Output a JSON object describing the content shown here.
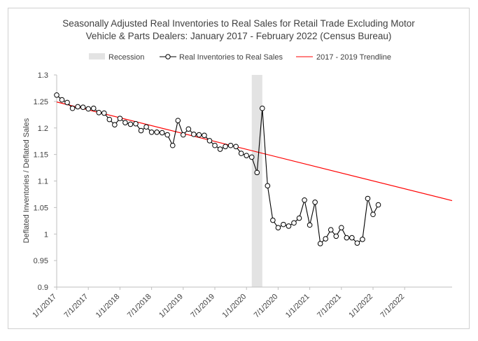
{
  "chart_data": {
    "type": "line",
    "title": "Seasonally Adjusted Real Inventories to Real Sales for Retail Trade Excluding Motor",
    "subtitle": "Vehicle & Parts Dealers: January 2017 - February  2022 (Census Bureau)",
    "xlabel": "",
    "ylabel": "Deflated Inventories / Deflated Sales",
    "ylim": [
      0.9,
      1.3
    ],
    "y_ticks": [
      "0.9",
      "0.95",
      "1",
      "1.05",
      "1.1",
      "1.15",
      "1.2",
      "1.25",
      "1.3"
    ],
    "x_range_months": [
      "2017-01",
      "2023-04"
    ],
    "x_ticks": [
      "1/1/2017",
      "7/1/2017",
      "1/1/2018",
      "7/1/2018",
      "1/1/2019",
      "7/1/2019",
      "1/1/2020",
      "7/1/2020",
      "1/1/2021",
      "7/1/2021",
      "1/1/2022",
      "7/1/2022"
    ],
    "legend_position": "top",
    "grid": false,
    "recession": {
      "name": "Recession",
      "start": "2020-02",
      "end": "2020-04",
      "color": "#e3e3e3"
    },
    "trendline": {
      "name": "2017 - 2019 Trendline",
      "color": "#ff0000",
      "start": {
        "x": "2017-01",
        "y": 1.249
      },
      "end": {
        "x": "2023-04",
        "y": 1.063
      }
    },
    "series": [
      {
        "name": "Real Inventories to Real Sales",
        "color": "#000000",
        "marker": "circle-open",
        "x": [
          "2017-01",
          "2017-02",
          "2017-03",
          "2017-04",
          "2017-05",
          "2017-06",
          "2017-07",
          "2017-08",
          "2017-09",
          "2017-10",
          "2017-11",
          "2017-12",
          "2018-01",
          "2018-02",
          "2018-03",
          "2018-04",
          "2018-05",
          "2018-06",
          "2018-07",
          "2018-08",
          "2018-09",
          "2018-10",
          "2018-11",
          "2018-12",
          "2019-01",
          "2019-02",
          "2019-03",
          "2019-04",
          "2019-05",
          "2019-06",
          "2019-07",
          "2019-08",
          "2019-09",
          "2019-10",
          "2019-11",
          "2019-12",
          "2020-01",
          "2020-02",
          "2020-03",
          "2020-04",
          "2020-05",
          "2020-06",
          "2020-07",
          "2020-08",
          "2020-09",
          "2020-10",
          "2020-11",
          "2020-12",
          "2021-01",
          "2021-02",
          "2021-03",
          "2021-04",
          "2021-05",
          "2021-06",
          "2021-07",
          "2021-08",
          "2021-09",
          "2021-10",
          "2021-11",
          "2021-12",
          "2022-01",
          "2022-02"
        ],
        "values": [
          1.262,
          1.253,
          1.248,
          1.237,
          1.24,
          1.239,
          1.236,
          1.237,
          1.229,
          1.228,
          1.216,
          1.206,
          1.218,
          1.21,
          1.207,
          1.208,
          1.195,
          1.202,
          1.192,
          1.192,
          1.191,
          1.187,
          1.167,
          1.214,
          1.187,
          1.198,
          1.188,
          1.187,
          1.186,
          1.176,
          1.167,
          1.16,
          1.165,
          1.167,
          1.165,
          1.152,
          1.148,
          1.145,
          1.116,
          1.237,
          1.091,
          1.026,
          1.012,
          1.018,
          1.015,
          1.021,
          1.03,
          1.064,
          1.017,
          1.06,
          0.982,
          0.991,
          1.008,
          0.996,
          1.012,
          0.993,
          0.993,
          0.983,
          0.99,
          1.067,
          1.037,
          1.055
        ]
      }
    ]
  }
}
